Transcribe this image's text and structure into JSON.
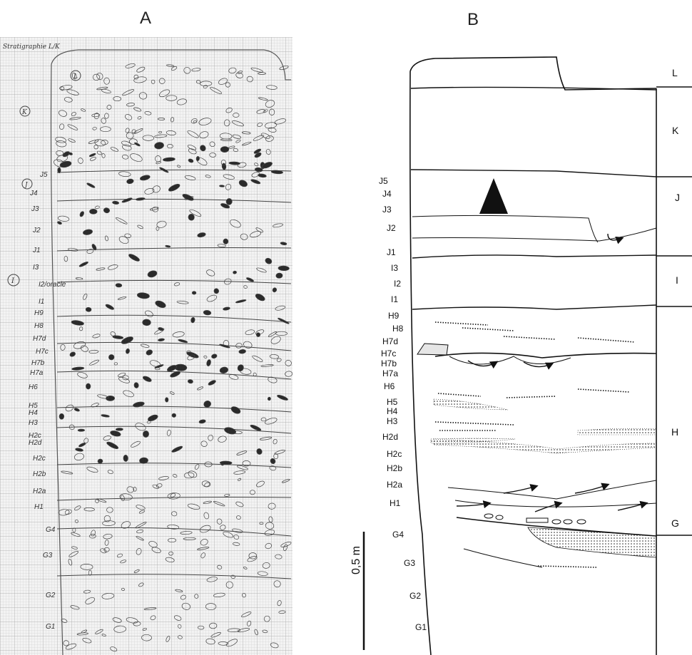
{
  "figure": {
    "panel_a": {
      "title": "A",
      "header_note": "Stratigraphie L/K",
      "circled_labels": [
        "L",
        "K",
        "J",
        "I"
      ],
      "layer_labels": [
        "J5",
        "J4",
        "J3",
        "J2",
        "J1",
        "I3",
        "I2/oracle",
        "I1",
        "H9",
        "H8",
        "H7d",
        "H7c",
        "H7b",
        "H7a",
        "H6",
        "H5",
        "H4",
        "H3",
        "H2c",
        "H2d",
        "H2c",
        "H2b",
        "H2a",
        "H1",
        "G4",
        "G3",
        "G2",
        "G1"
      ]
    },
    "panel_b": {
      "title": "B",
      "layer_labels": [
        "J5",
        "J4",
        "J3",
        "J2",
        "J1",
        "I3",
        "I2",
        "I1",
        "H9",
        "H8",
        "H7d",
        "H7c",
        "H7b",
        "H7a",
        "H6",
        "H5",
        "H4",
        "H3",
        "H2d",
        "H2c",
        "H2b",
        "H2a",
        "H1",
        "G4",
        "G3",
        "G2",
        "G1"
      ],
      "units": [
        "L",
        "K",
        "J",
        "I",
        "H",
        "G"
      ],
      "scale_label": "0,5 m"
    }
  }
}
